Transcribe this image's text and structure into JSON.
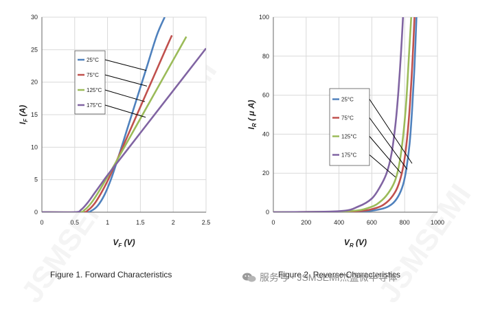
{
  "chart_data": [
    {
      "type": "line",
      "title": "",
      "xlabel_main": "V",
      "xlabel_sub": "F",
      "xlabel_unit": " (V)",
      "ylabel_main": "I",
      "ylabel_sub": "F",
      "ylabel_unit": " (A)",
      "xlim": [
        0,
        2.5
      ],
      "ylim": [
        0,
        30
      ],
      "xticks": [
        "0",
        "0.5",
        "1",
        "1.5",
        "2",
        "2.5"
      ],
      "yticks": [
        "0",
        "5",
        "10",
        "15",
        "20",
        "25",
        "30"
      ],
      "grid": true,
      "series": [
        {
          "name": "25°C",
          "color": "#4f81bd",
          "x": [
            0,
            0.65,
            0.75,
            0.85,
            0.95,
            1.05,
            1.15,
            1.3,
            1.45,
            1.6,
            1.75,
            1.87
          ],
          "y": [
            0,
            0,
            0.2,
            1.0,
            2.6,
            5.0,
            8.0,
            12.8,
            17.6,
            22.4,
            27.2,
            30
          ]
        },
        {
          "name": "75°C",
          "color": "#c0504d",
          "x": [
            0,
            0.6,
            0.7,
            0.8,
            0.9,
            1.0,
            1.1,
            1.3,
            1.5,
            1.7,
            1.9,
            1.98
          ],
          "y": [
            0,
            0,
            0.3,
            1.3,
            2.9,
            4.8,
            7.0,
            11.6,
            16.2,
            20.8,
            25.4,
            27.2
          ]
        },
        {
          "name": "125°C",
          "color": "#9bbb59",
          "x": [
            0,
            0.55,
            0.65,
            0.75,
            0.85,
            0.95,
            1.1,
            1.3,
            1.5,
            1.7,
            1.9,
            2.1,
            2.2
          ],
          "y": [
            0,
            0,
            0.35,
            1.4,
            2.9,
            4.6,
            7.2,
            10.8,
            14.4,
            18.0,
            21.6,
            25.2,
            27.0
          ]
        },
        {
          "name": "175°C",
          "color": "#8064a2",
          "x": [
            0,
            0.5,
            0.6,
            0.7,
            0.8,
            0.9,
            1.0,
            1.2,
            1.5,
            1.8,
            2.1,
            2.4,
            2.5
          ],
          "y": [
            0,
            0,
            0.4,
            1.5,
            2.9,
            4.3,
            5.7,
            8.3,
            12.2,
            16.1,
            20.0,
            23.9,
            25.2
          ]
        }
      ],
      "legend": "top-left, with leader lines to curves"
    },
    {
      "type": "line",
      "title": "",
      "xlabel_main": "V",
      "xlabel_sub": "R",
      "xlabel_unit": " (V)",
      "ylabel_main": "I",
      "ylabel_sub": "R",
      "ylabel_unit": " ( μ A)",
      "xlim": [
        0,
        1000
      ],
      "ylim": [
        0,
        100
      ],
      "xticks": [
        "0",
        "200",
        "400",
        "600",
        "800",
        "1000"
      ],
      "yticks": [
        "0",
        "20",
        "40",
        "60",
        "80",
        "100"
      ],
      "grid": true,
      "series": [
        {
          "name": "25°C",
          "color": "#4f81bd",
          "x": [
            0,
            500,
            650,
            720,
            760,
            790,
            810,
            830,
            845,
            860,
            872
          ],
          "y": [
            0,
            0.3,
            1.5,
            4,
            8,
            14,
            22,
            35,
            52,
            75,
            100
          ]
        },
        {
          "name": "75°C",
          "color": "#c0504d",
          "x": [
            0,
            480,
            620,
            690,
            740,
            770,
            795,
            815,
            832,
            848,
            860
          ],
          "y": [
            0,
            0.4,
            2,
            5,
            10,
            16,
            25,
            38,
            55,
            78,
            100
          ]
        },
        {
          "name": "125°C",
          "color": "#9bbb59",
          "x": [
            0,
            450,
            590,
            660,
            710,
            745,
            770,
            792,
            810,
            826,
            840
          ],
          "y": [
            0,
            0.5,
            2.5,
            6,
            11,
            17,
            26,
            40,
            57,
            80,
            100
          ]
        },
        {
          "name": "175°C",
          "color": "#8064a2",
          "x": [
            0,
            400,
            520,
            600,
            650,
            690,
            720,
            744,
            762,
            778,
            790
          ],
          "y": [
            0,
            0.5,
            3,
            7,
            13,
            20,
            30,
            45,
            62,
            82,
            100
          ]
        }
      ],
      "legend": "center-left, with leader lines to curves"
    }
  ],
  "captions": {
    "fig1": "Figure 1. Forward Characteristics",
    "fig2": "Figure 2. Reverse Characteristics"
  },
  "watermark_text": "服务号 · JSMSEMI杰盛微半导体",
  "background_watermark": "JSMSEMI"
}
